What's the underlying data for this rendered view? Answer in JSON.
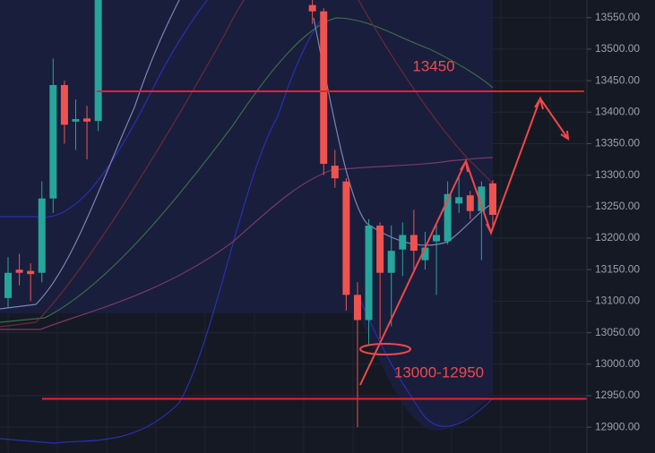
{
  "chart_data": {
    "type": "candlestick",
    "x": [
      0,
      1,
      2,
      3,
      4,
      5,
      6,
      7,
      8,
      27,
      28,
      29,
      30,
      31,
      32,
      33,
      34,
      35,
      36,
      37,
      38,
      39,
      40,
      41,
      42,
      43
    ],
    "open": [
      13105,
      13150,
      13148,
      13145,
      13263,
      13443,
      13385,
      13390,
      13386,
      13570,
      13560,
      13315,
      13290,
      13110,
      13070,
      13220,
      13145,
      13182,
      13205,
      13165,
      13195,
      13195,
      13255,
      13268,
      13243,
      13287
    ],
    "high": [
      13170,
      13175,
      13160,
      13290,
      13485,
      13450,
      13420,
      13410,
      13578,
      13578,
      13565,
      13340,
      13295,
      13130,
      13230,
      13225,
      13220,
      13225,
      13245,
      13210,
      13220,
      13290,
      13300,
      13275,
      13290,
      13292
    ],
    "low": [
      13090,
      13125,
      13100,
      13130,
      13240,
      13350,
      13340,
      13325,
      13370,
      13540,
      13300,
      13280,
      13085,
      12900,
      13030,
      13040,
      13060,
      13140,
      13150,
      13150,
      13110,
      13190,
      13240,
      13230,
      13165,
      13220
    ],
    "close": [
      13145,
      13145,
      13143,
      13263,
      13443,
      13380,
      13389,
      13385,
      13578,
      13560,
      13318,
      13295,
      13110,
      13070,
      13220,
      13145,
      13180,
      13205,
      13180,
      13185,
      13205,
      13270,
      13265,
      13243,
      13282,
      13237
    ],
    "up_color": "#26a69a",
    "down_color": "#ef5350",
    "ylim": [
      12859,
      13578
    ],
    "yticks": [
      {
        "value": 13550,
        "label": "13550.00"
      },
      {
        "value": 13500,
        "label": "13500.00"
      },
      {
        "value": 13450,
        "label": "13450.00"
      },
      {
        "value": 13400,
        "label": "13400.00"
      },
      {
        "value": 13350,
        "label": "13350.00"
      },
      {
        "value": 13300,
        "label": "13300.00"
      },
      {
        "value": 13250,
        "label": "13250.00"
      },
      {
        "value": 13200,
        "label": "13200.00"
      },
      {
        "value": 13150,
        "label": "13150.00"
      },
      {
        "value": 13100,
        "label": "13100.00"
      },
      {
        "value": 13050,
        "label": "13050.00"
      },
      {
        "value": 13000,
        "label": "13000.00"
      },
      {
        "value": 12950,
        "label": "12950.00"
      },
      {
        "value": 12900,
        "label": "12900.00"
      }
    ],
    "grid": true,
    "levels": [
      13433,
      12945
    ],
    "level_color": "#e8222a",
    "annotations": [
      "13450",
      "13000-12950"
    ]
  }
}
